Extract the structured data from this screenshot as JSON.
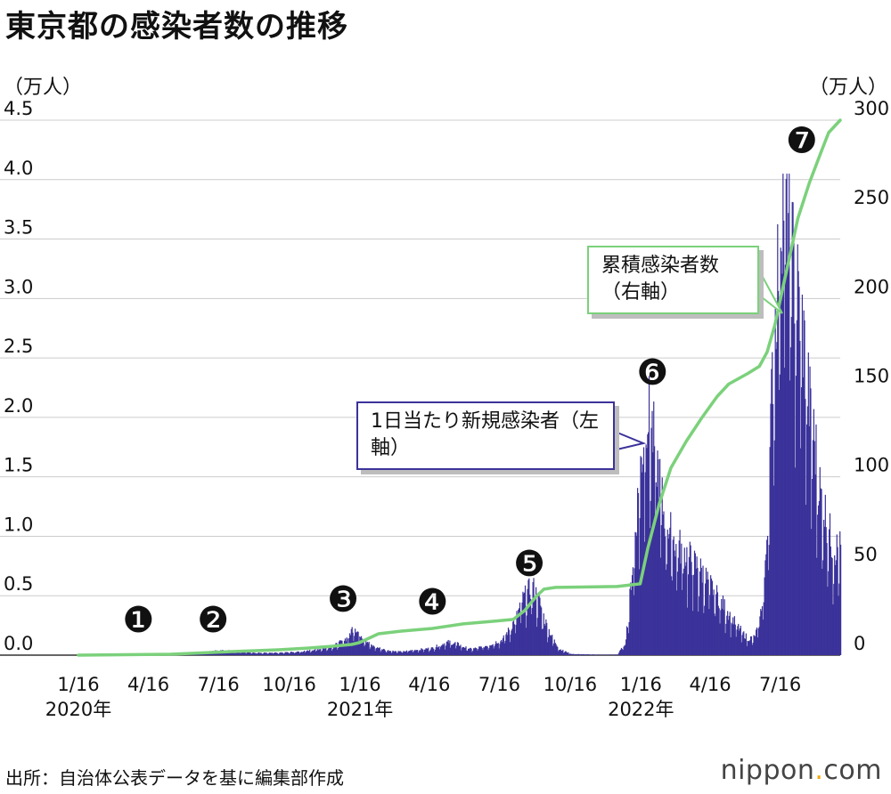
{
  "title": "東京都の感染者数の推移",
  "units": {
    "left": "（万人）",
    "right": "（万人）"
  },
  "annotations": {
    "daily": "1日当たり新規感染者（左軸）",
    "cumulative": "累積感染者数（右軸）"
  },
  "wave_labels": [
    "❶",
    "❷",
    "❸",
    "❹",
    "❺",
    "❻",
    "❼"
  ],
  "source": "出所：自治体公表データを基に編集部作成",
  "logo": {
    "main": "nippon",
    "dot": ".",
    "suffix": "com"
  },
  "colors": {
    "bars": "#3b329a",
    "line": "#7bd17b",
    "grid": "#cccccc"
  },
  "chart_data": {
    "type": "bar+line",
    "title": "東京都の感染者数の推移",
    "x_start": "2020-01-16",
    "x_end": "2022-09-30",
    "x_tick_labels": [
      "1/16",
      "4/16",
      "7/16",
      "10/16",
      "1/16",
      "4/16",
      "7/16",
      "10/16",
      "1/16",
      "4/16",
      "7/16"
    ],
    "year_labels": [
      "2020年",
      "2021年",
      "2022年"
    ],
    "left_axis": {
      "label": "（万人）",
      "ylim": [
        0,
        4.5
      ],
      "ticks": [
        "0.0",
        "0.5",
        "1.0",
        "1.5",
        "2.0",
        "2.5",
        "3.0",
        "3.5",
        "4.0",
        "4.5"
      ]
    },
    "right_axis": {
      "label": "（万人）",
      "ylim": [
        0,
        300
      ],
      "ticks": [
        "0",
        "50",
        "100",
        "150",
        "200",
        "250",
        "300"
      ]
    },
    "series": [
      {
        "name": "1日当たり新規感染者（左軸）",
        "kind": "bar",
        "axis": "left",
        "unit": "万人",
        "x_day_offsets": [
          0,
          60,
          75,
          90,
          120,
          150,
          170,
          185,
          200,
          230,
          260,
          290,
          320,
          335,
          350,
          355,
          358,
          362,
          370,
          380,
          400,
          420,
          445,
          460,
          470,
          480,
          490,
          500,
          510,
          530,
          550,
          560,
          570,
          575,
          580,
          585,
          590,
          595,
          600,
          605,
          615,
          625,
          640,
          680,
          700,
          710,
          715,
          720,
          725,
          728,
          732,
          738,
          745,
          752,
          760,
          775,
          790,
          810,
          830,
          845,
          855,
          865,
          870,
          878,
          885,
          892,
          897,
          902,
          906,
          910,
          915,
          920,
          925,
          930,
          935,
          940,
          945,
          950,
          958,
          965,
          970,
          980
        ],
        "values": [
          0.0,
          0.005,
          0.01,
          0.015,
          0.002,
          0.01,
          0.03,
          0.04,
          0.035,
          0.02,
          0.02,
          0.03,
          0.06,
          0.09,
          0.15,
          0.22,
          0.25,
          0.2,
          0.15,
          0.08,
          0.04,
          0.03,
          0.05,
          0.06,
          0.09,
          0.11,
          0.1,
          0.07,
          0.05,
          0.08,
          0.13,
          0.22,
          0.34,
          0.45,
          0.5,
          0.55,
          0.58,
          0.5,
          0.42,
          0.3,
          0.15,
          0.05,
          0.01,
          0.003,
          0.005,
          0.1,
          0.4,
          0.8,
          1.2,
          1.45,
          1.7,
          2.1,
          1.9,
          1.6,
          1.2,
          0.95,
          0.85,
          0.7,
          0.5,
          0.35,
          0.25,
          0.17,
          0.14,
          0.15,
          0.3,
          0.7,
          1.5,
          2.5,
          3.0,
          3.5,
          4.0,
          3.9,
          3.5,
          3.2,
          3.0,
          2.8,
          2.4,
          2.1,
          1.7,
          1.3,
          1.2,
          0.9
        ]
      },
      {
        "name": "累積感染者数（右軸）",
        "kind": "line",
        "axis": "right",
        "unit": "万人",
        "x_day_offsets": [
          0,
          120,
          200,
          260,
          300,
          330,
          355,
          365,
          375,
          390,
          420,
          460,
          500,
          540,
          565,
          580,
          595,
          605,
          620,
          700,
          730,
          740,
          755,
          770,
          790,
          810,
          830,
          845,
          870,
          885,
          895,
          905,
          915,
          925,
          935,
          950,
          965,
          975,
          990
        ],
        "values": [
          0,
          0.5,
          2,
          3,
          4,
          5,
          6,
          7,
          9,
          12,
          13.5,
          15,
          17.5,
          19,
          20,
          25,
          33,
          37,
          38,
          38.5,
          40,
          60,
          85,
          105,
          120,
          133,
          145,
          152,
          158,
          162,
          170,
          185,
          205,
          225,
          245,
          265,
          282,
          293,
          300
        ]
      }
    ],
    "wave_markers": [
      {
        "label": "❶",
        "day": 78,
        "value": 0.3
      },
      {
        "label": "❷",
        "day": 175,
        "value": 0.3
      },
      {
        "label": "❸",
        "day": 344,
        "value": 0.47
      },
      {
        "label": "❹",
        "day": 460,
        "value": 0.45
      },
      {
        "label": "❺",
        "day": 586,
        "value": 0.77
      },
      {
        "label": "❻",
        "day": 746,
        "value": 2.38
      },
      {
        "label": "❼",
        "day": 940,
        "value": 4.33
      }
    ]
  }
}
